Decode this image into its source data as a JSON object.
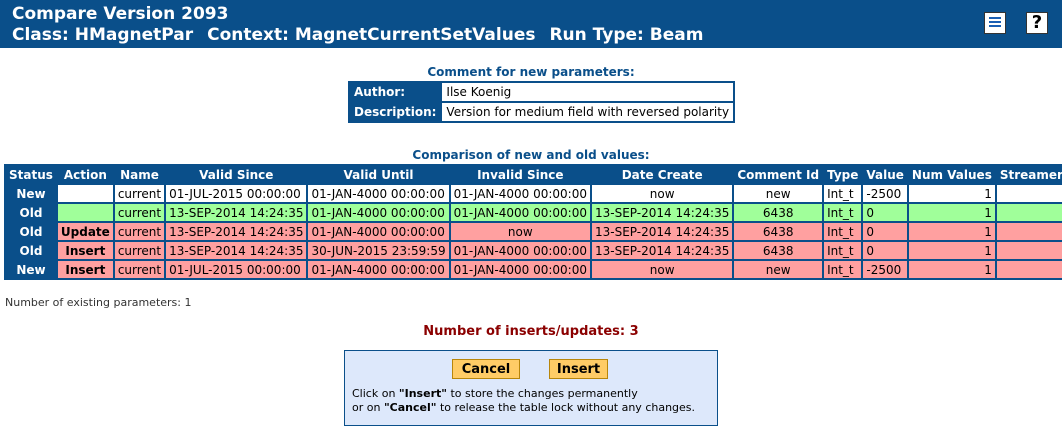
{
  "header": {
    "title": "Compare Version 2093",
    "class_text": "Class: HMagnetPar",
    "context_text": "Context: MagnetCurrentSetValues",
    "runtype_text": "Run Type: Beam",
    "help_glyph": "?",
    "icons": [
      "document-list-icon",
      "help-icon"
    ]
  },
  "comment": {
    "caption": "Comment for new parameters:",
    "author_label": "Author:",
    "author_value": "Ilse Koenig",
    "description_label": "Description:",
    "description_value": "Version for medium field with reversed polarity"
  },
  "comparison": {
    "caption": "Comparison of new and old values:",
    "headers": [
      "Status",
      "Action",
      "Name",
      "Valid Since",
      "Valid Until",
      "Invalid Since",
      "Date Create",
      "Comment Id",
      "Type",
      "Value",
      "Num Values",
      "Streamer Info"
    ],
    "rows": [
      {
        "status": "New",
        "action": "",
        "name": "current",
        "valid_since": "01-JUL-2015 00:00:00",
        "valid_until": "01-JAN-4000 00:00:00",
        "invalid_since": "01-JAN-4000 00:00:00",
        "date_create": "now",
        "comment_id": "new",
        "type": "Int_t",
        "value": "-2500",
        "num_values": "1",
        "streamer_info": "",
        "color": "white"
      },
      {
        "status": "Old",
        "action": "",
        "name": "current",
        "valid_since": "13-SEP-2014 14:24:35",
        "valid_until": "01-JAN-4000 00:00:00",
        "invalid_since": "01-JAN-4000 00:00:00",
        "date_create": "13-SEP-2014 14:24:35",
        "comment_id": "6438",
        "type": "Int_t",
        "value": "0",
        "num_values": "1",
        "streamer_info": "",
        "color": "green"
      },
      {
        "status": "Old",
        "action": "Update",
        "name": "current",
        "valid_since": "13-SEP-2014 14:24:35",
        "valid_until": "01-JAN-4000 00:00:00",
        "invalid_since": "now",
        "date_create": "13-SEP-2014 14:24:35",
        "comment_id": "6438",
        "type": "Int_t",
        "value": "0",
        "num_values": "1",
        "streamer_info": "",
        "color": "red"
      },
      {
        "status": "Old",
        "action": "Insert",
        "name": "current",
        "valid_since": "13-SEP-2014 14:24:35",
        "valid_until": "30-JUN-2015 23:59:59",
        "invalid_since": "01-JAN-4000 00:00:00",
        "date_create": "13-SEP-2014 14:24:35",
        "comment_id": "6438",
        "type": "Int_t",
        "value": "0",
        "num_values": "1",
        "streamer_info": "",
        "color": "red"
      },
      {
        "status": "New",
        "action": "Insert",
        "name": "current",
        "valid_since": "01-JUL-2015 00:00:00",
        "valid_until": "01-JAN-4000 00:00:00",
        "invalid_since": "01-JAN-4000 00:00:00",
        "date_create": "now",
        "comment_id": "new",
        "type": "Int_t",
        "value": "-2500",
        "num_values": "1",
        "streamer_info": "",
        "color": "red"
      }
    ]
  },
  "existing_params_text": "Number of existing parameters: 1",
  "inserts_updates_text": "Number of inserts/updates: 3",
  "actions": {
    "cancel_label": "Cancel",
    "insert_label": "Insert",
    "line1_pre": "Click on ",
    "line1_bold": "\"Insert\"",
    "line1_post": " to store the changes permanently",
    "line2_pre": "or on ",
    "line2_bold": "\"Cancel\"",
    "line2_post": " to release the table lock without any changes."
  },
  "colors": {
    "header_blue": "#0a4f8a",
    "row_green": "#a0ff9a",
    "row_red": "#ffa0a0",
    "button_orange": "#ffcc66",
    "inserts_text": "#8b0000",
    "panel_bg": "#dde8fb"
  }
}
